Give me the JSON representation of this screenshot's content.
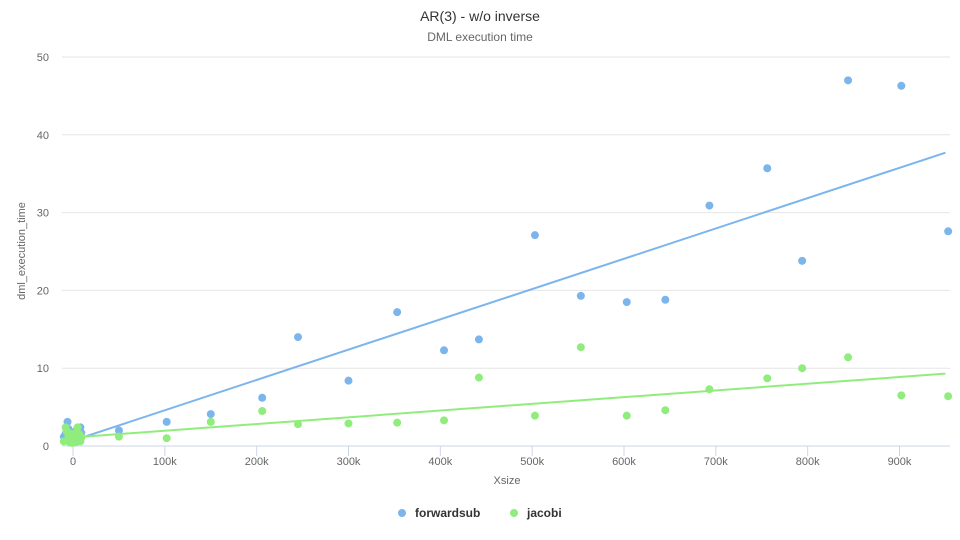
{
  "chart_data": {
    "type": "scatter",
    "title": "AR(3) - w/o inverse",
    "subtitle": "DML execution time",
    "xlabel": "Xsize",
    "ylabel": "dml_execution_time",
    "xlim": [
      -12000,
      955000
    ],
    "ylim": [
      0,
      50
    ],
    "x_ticks": [
      0,
      100000,
      200000,
      300000,
      400000,
      500000,
      600000,
      700000,
      800000,
      900000
    ],
    "x_tick_labels": [
      "0",
      "100k",
      "200k",
      "300k",
      "400k",
      "500k",
      "600k",
      "700k",
      "800k",
      "900k"
    ],
    "y_ticks": [
      0,
      10,
      20,
      30,
      40,
      50
    ],
    "y_tick_labels": [
      "0",
      "10",
      "20",
      "30",
      "40",
      "50"
    ],
    "grid": "horizontal",
    "legend_position": "bottom-center",
    "series": [
      {
        "name": "forwardsub",
        "color": "#7cb5ec",
        "points": [
          [
            -10000,
            1.2
          ],
          [
            -8000,
            1.6
          ],
          [
            -6000,
            3.1
          ],
          [
            -5000,
            2.2
          ],
          [
            -4000,
            1.8
          ],
          [
            -3000,
            1.4
          ],
          [
            -2000,
            1.0
          ],
          [
            -1000,
            0.8
          ],
          [
            1000,
            1.1
          ],
          [
            2000,
            1.5
          ],
          [
            3000,
            1.9
          ],
          [
            4000,
            2.1
          ],
          [
            5000,
            1.4
          ],
          [
            6000,
            2.3
          ],
          [
            7000,
            1.0
          ],
          [
            8000,
            2.4
          ],
          [
            9000,
            1.7
          ],
          [
            50000,
            2.0
          ],
          [
            102000,
            3.1
          ],
          [
            150000,
            4.1
          ],
          [
            206000,
            6.2
          ],
          [
            245000,
            14.0
          ],
          [
            300000,
            8.4
          ],
          [
            353000,
            17.2
          ],
          [
            404000,
            12.3
          ],
          [
            442000,
            13.7
          ],
          [
            503000,
            27.1
          ],
          [
            553000,
            19.3
          ],
          [
            603000,
            18.5
          ],
          [
            645000,
            18.8
          ],
          [
            693000,
            30.9
          ],
          [
            756000,
            35.7
          ],
          [
            794000,
            23.8
          ],
          [
            844000,
            47.0
          ],
          [
            902000,
            46.3
          ],
          [
            953000,
            27.6
          ]
        ],
        "trend": [
          [
            0,
            0.7
          ],
          [
            950000,
            37.7
          ]
        ]
      },
      {
        "name": "jacobi",
        "color": "#90ed7d",
        "points": [
          [
            -10000,
            0.6
          ],
          [
            -8000,
            2.4
          ],
          [
            -7000,
            1.9
          ],
          [
            -5000,
            1.3
          ],
          [
            -4000,
            0.5
          ],
          [
            -3000,
            1.6
          ],
          [
            -2000,
            0.9
          ],
          [
            -1000,
            0.4
          ],
          [
            1000,
            0.7
          ],
          [
            2000,
            1.2
          ],
          [
            3000,
            0.5
          ],
          [
            4000,
            1.8
          ],
          [
            5000,
            2.4
          ],
          [
            6000,
            0.9
          ],
          [
            7000,
            1.5
          ],
          [
            8000,
            0.6
          ],
          [
            9000,
            1.1
          ],
          [
            50000,
            1.2
          ],
          [
            102000,
            1.0
          ],
          [
            150000,
            3.1
          ],
          [
            206000,
            4.5
          ],
          [
            245000,
            2.8
          ],
          [
            300000,
            2.9
          ],
          [
            353000,
            3.0
          ],
          [
            404000,
            3.3
          ],
          [
            442000,
            8.8
          ],
          [
            503000,
            3.9
          ],
          [
            553000,
            12.7
          ],
          [
            603000,
            3.9
          ],
          [
            645000,
            4.6
          ],
          [
            693000,
            7.3
          ],
          [
            756000,
            8.7
          ],
          [
            794000,
            10.0
          ],
          [
            844000,
            11.4
          ],
          [
            902000,
            6.5
          ],
          [
            953000,
            6.4
          ]
        ],
        "trend": [
          [
            0,
            1.1
          ],
          [
            950000,
            9.3
          ]
        ]
      }
    ]
  }
}
